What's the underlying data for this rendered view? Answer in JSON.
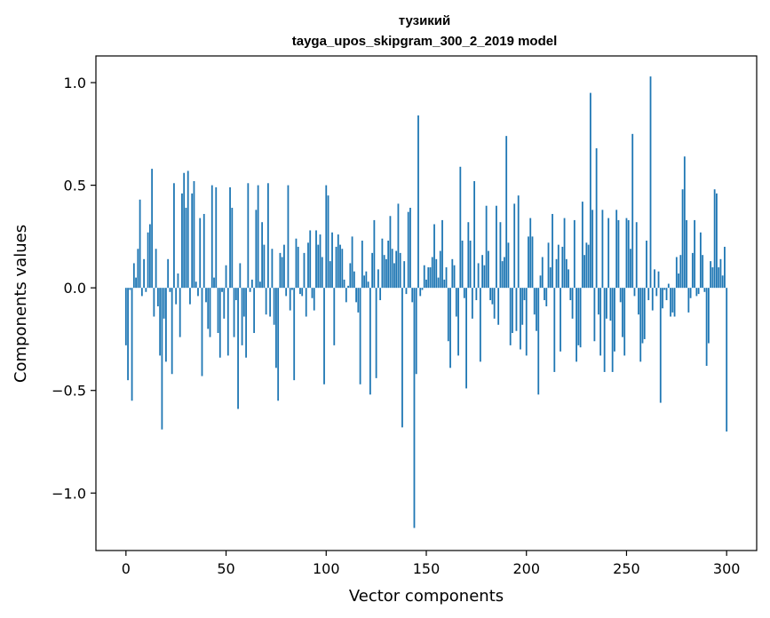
{
  "chart_data": {
    "type": "bar",
    "title": "тузикий",
    "subtitle": "tayga_upos_skipgram_300_2_2019 model",
    "xlabel": "Vector components",
    "ylabel": "Components values",
    "xlim": [
      -15,
      315
    ],
    "ylim": [
      -1.28,
      1.13
    ],
    "xticks": [
      0,
      50,
      100,
      150,
      200,
      250,
      300
    ],
    "yticks": [
      -1.0,
      -0.5,
      0.0,
      0.5,
      1.0
    ],
    "ytick_labels": [
      "−1.0",
      "−0.5",
      "0.0",
      "0.5",
      "1.0"
    ],
    "bar_color": "#1f77b4",
    "values": [
      -0.28,
      -0.45,
      -0.01,
      -0.55,
      0.12,
      0.05,
      0.19,
      0.43,
      -0.04,
      0.14,
      -0.02,
      0.27,
      0.31,
      0.58,
      -0.14,
      0.19,
      -0.09,
      -0.33,
      -0.69,
      -0.15,
      -0.36,
      0.14,
      -0.02,
      -0.42,
      0.51,
      -0.08,
      0.07,
      -0.24,
      0.46,
      0.56,
      0.39,
      0.57,
      -0.08,
      0.46,
      0.52,
      0.03,
      -0.04,
      0.34,
      -0.43,
      0.36,
      -0.07,
      -0.2,
      -0.24,
      0.5,
      0.05,
      0.49,
      -0.22,
      -0.34,
      -0.02,
      -0.15,
      0.11,
      -0.33,
      0.49,
      0.39,
      -0.24,
      -0.06,
      -0.59,
      0.12,
      -0.28,
      -0.14,
      -0.34,
      0.51,
      -0.02,
      0.04,
      -0.22,
      0.38,
      0.5,
      0.03,
      0.32,
      0.21,
      -0.13,
      0.51,
      -0.14,
      0.19,
      -0.18,
      -0.39,
      -0.55,
      0.17,
      0.15,
      0.21,
      -0.04,
      0.5,
      -0.11,
      -0.01,
      -0.45,
      0.24,
      0.2,
      -0.03,
      -0.04,
      0.17,
      -0.14,
      0.22,
      0.28,
      -0.05,
      -0.11,
      0.28,
      0.21,
      0.26,
      0.15,
      -0.47,
      0.5,
      0.45,
      0.13,
      0.27,
      -0.28,
      0.2,
      0.26,
      0.21,
      0.19,
      0.04,
      -0.07,
      0.01,
      0.12,
      0.25,
      0.08,
      -0.07,
      -0.12,
      -0.47,
      0.23,
      0.06,
      0.08,
      0.03,
      -0.52,
      0.17,
      0.33,
      -0.44,
      0.09,
      -0.06,
      0.24,
      0.16,
      0.14,
      0.23,
      0.35,
      0.19,
      0.12,
      0.18,
      0.41,
      0.17,
      -0.68,
      0.13,
      -0.03,
      0.37,
      0.39,
      -0.07,
      -1.17,
      -0.42,
      0.84,
      -0.04,
      -0.01,
      0.11,
      0.04,
      0.1,
      0.1,
      0.15,
      0.31,
      0.14,
      0.05,
      0.18,
      0.33,
      0.04,
      0.1,
      -0.26,
      -0.39,
      0.14,
      0.11,
      -0.14,
      -0.33,
      0.59,
      0.23,
      -0.05,
      -0.49,
      0.32,
      0.23,
      -0.15,
      0.52,
      -0.06,
      0.12,
      -0.36,
      0.16,
      0.11,
      0.4,
      0.18,
      -0.06,
      -0.08,
      -0.15,
      0.4,
      -0.18,
      0.32,
      0.13,
      0.15,
      0.74,
      0.22,
      -0.28,
      -0.22,
      0.41,
      -0.21,
      0.45,
      -0.3,
      -0.18,
      -0.06,
      -0.33,
      0.25,
      0.34,
      0.25,
      -0.13,
      -0.21,
      -0.52,
      0.06,
      0.15,
      -0.06,
      -0.09,
      0.22,
      0.1,
      0.36,
      -0.41,
      0.14,
      0.21,
      -0.31,
      0.2,
      0.34,
      0.14,
      0.09,
      -0.06,
      -0.15,
      0.33,
      -0.36,
      -0.28,
      -0.29,
      0.42,
      0.16,
      0.22,
      0.21,
      0.95,
      0.38,
      -0.26,
      0.68,
      -0.13,
      -0.33,
      0.38,
      -0.41,
      -0.15,
      0.34,
      -0.16,
      -0.41,
      -0.31,
      0.38,
      0.33,
      -0.07,
      -0.24,
      -0.33,
      0.34,
      0.33,
      0.19,
      0.75,
      -0.04,
      0.32,
      -0.13,
      -0.36,
      -0.27,
      -0.25,
      0.23,
      -0.06,
      1.03,
      -0.11,
      0.09,
      -0.04,
      0.08,
      -0.56,
      -0.1,
      -0.01,
      -0.06,
      0.02,
      -0.14,
      -0.12,
      -0.14,
      0.15,
      0.07,
      0.16,
      0.48,
      0.64,
      0.33,
      -0.12,
      -0.05,
      0.17,
      0.33,
      -0.04,
      -0.03,
      0.27,
      0.16,
      -0.02,
      -0.38,
      -0.27,
      0.13,
      0.1,
      0.48,
      0.46,
      0.1,
      0.14,
      0.06,
      0.2,
      -0.7
    ]
  }
}
